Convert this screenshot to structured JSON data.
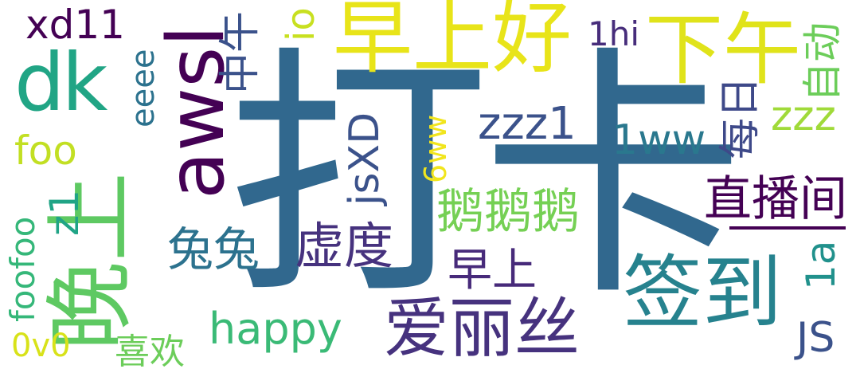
{
  "cloud": {
    "words": [
      {
        "id": "daka",
        "text": "打卡",
        "color": "#31688e"
      },
      {
        "id": "wanshang",
        "text": "晚上",
        "color": "#5ec962"
      },
      {
        "id": "zaoshanghao",
        "text": "早上好",
        "color": "#e8e419"
      },
      {
        "id": "xiawu",
        "text": "下午",
        "color": "#e0e31a"
      },
      {
        "id": "dk",
        "text": "dk",
        "color": "#21a585"
      },
      {
        "id": "awsl",
        "text": "awsl",
        "color": "#440154"
      },
      {
        "id": "qiandao",
        "text": "签到",
        "color": "#26828e"
      },
      {
        "id": "ailisi",
        "text": "爱丽丝",
        "color": "#46327e"
      },
      {
        "id": "xd11",
        "text": "xd11",
        "color": "#440154"
      },
      {
        "id": "zhongwu",
        "text": "中午",
        "color": "#3b528b"
      },
      {
        "id": "io",
        "text": "io",
        "color": "#c8e020"
      },
      {
        "id": "1hi",
        "text": "1hi",
        "color": "#472d7b"
      },
      {
        "id": "zidong",
        "text": "自动",
        "color": "#6ccd5a"
      },
      {
        "id": "eeee",
        "text": "eeee",
        "color": "#2c728e"
      },
      {
        "id": "meiri",
        "text": "每日",
        "color": "#3e4989"
      },
      {
        "id": "zzz1",
        "text": "zzz1",
        "color": "#3b528b"
      },
      {
        "id": "zzz",
        "text": "zzz",
        "color": "#a0da39"
      },
      {
        "id": "foo",
        "text": "foo",
        "color": "#c2df23"
      },
      {
        "id": "1ww",
        "text": "1ww",
        "color": "#2a788e"
      },
      {
        "id": "jsxd",
        "text": "jsXD",
        "color": "#3b528b"
      },
      {
        "id": "6ww",
        "text": "6ww",
        "color": "#f1e51d"
      },
      {
        "id": "zhibojian",
        "text": "直播间",
        "color": "#440154"
      },
      {
        "id": "ee",
        "text": "鹅鹅鹅",
        "color": "#75d054"
      },
      {
        "id": "z1",
        "text": "z1",
        "color": "#20a486"
      },
      {
        "id": "tutu",
        "text": "兔兔",
        "color": "#2c728e"
      },
      {
        "id": "xudu",
        "text": "虚度",
        "color": "#46327e"
      },
      {
        "id": "zaoshang",
        "text": "早上",
        "color": "#472a7a"
      },
      {
        "id": "1a",
        "text": "1a",
        "color": "#21918c"
      },
      {
        "id": "foofoo",
        "text": "foofoo",
        "color": "#35b779"
      },
      {
        "id": "happy",
        "text": "happy",
        "color": "#3aba76"
      },
      {
        "id": "js",
        "text": "JS",
        "color": "#3b528b"
      },
      {
        "id": "0v0",
        "text": "0v0",
        "color": "#d8e219"
      },
      {
        "id": "xihuan",
        "text": "喜欢",
        "color": "#6ccd5a"
      }
    ]
  }
}
